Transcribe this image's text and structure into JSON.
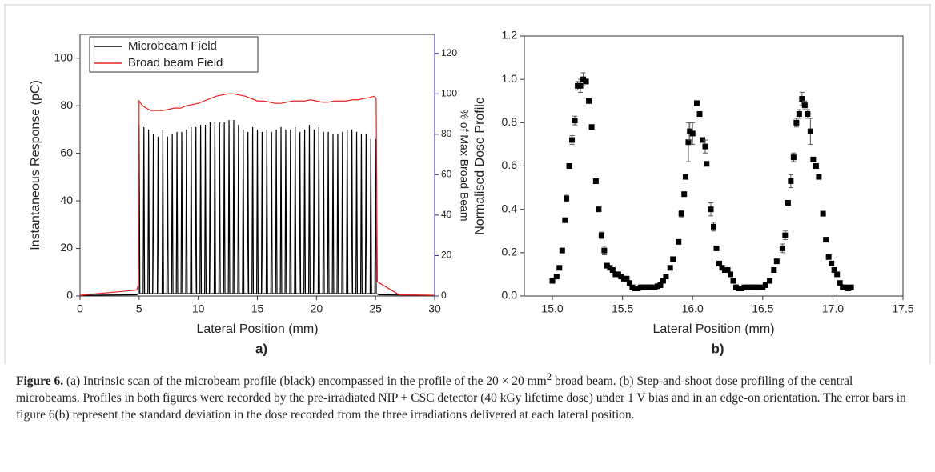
{
  "chart_data": [
    {
      "type": "line",
      "panel_label": "a)",
      "x_label": "Lateral Position (mm)",
      "y_label": "Instantaneous Response (pC)",
      "y2_label": "% of Max Broad Beam",
      "xlim": [
        0,
        30
      ],
      "ylim": [
        0,
        110
      ],
      "y2lim": [
        0,
        129.4
      ],
      "xticks": [
        0,
        5,
        10,
        15,
        20,
        25,
        30
      ],
      "yticks": [
        0,
        20,
        40,
        60,
        80,
        100
      ],
      "y2ticks": [
        0,
        20,
        40,
        60,
        80,
        100,
        120
      ],
      "y2_color": "#2b2bb0",
      "legend": "upper left",
      "series": [
        {
          "name": "Microbeam Field",
          "color": "#000000",
          "x": [
            0,
            4.8,
            4.94,
            5,
            5.06,
            5.34,
            5.4,
            5.46,
            5.74,
            5.8,
            5.86,
            6.14,
            6.2,
            6.26,
            6.54,
            6.6,
            6.66,
            6.94,
            7,
            7.06,
            7.34,
            7.4,
            7.46,
            7.74,
            7.8,
            7.86,
            8.14,
            8.2,
            8.26,
            8.54,
            8.6,
            8.66,
            8.94,
            9,
            9.06,
            9.34,
            9.4,
            9.46,
            9.74,
            9.8,
            9.86,
            10.14,
            10.2,
            10.26,
            10.54,
            10.6,
            10.66,
            10.94,
            11,
            11.06,
            11.34,
            11.4,
            11.46,
            11.74,
            11.8,
            11.86,
            12.14,
            12.2,
            12.26,
            12.54,
            12.6,
            12.66,
            12.94,
            13,
            13.06,
            13.34,
            13.4,
            13.46,
            13.74,
            13.8,
            13.86,
            14.14,
            14.2,
            14.26,
            14.54,
            14.6,
            14.66,
            14.94,
            15,
            15.06,
            15.34,
            15.4,
            15.46,
            15.74,
            15.8,
            15.86,
            16.14,
            16.2,
            16.26,
            16.54,
            16.6,
            16.66,
            16.94,
            17,
            17.06,
            17.34,
            17.4,
            17.46,
            17.74,
            17.8,
            17.86,
            18.14,
            18.2,
            18.26,
            18.54,
            18.6,
            18.66,
            18.94,
            19,
            19.06,
            19.34,
            19.4,
            19.46,
            19.74,
            19.8,
            19.86,
            20.14,
            20.2,
            20.26,
            20.54,
            20.6,
            20.66,
            20.94,
            21,
            21.06,
            21.34,
            21.4,
            21.46,
            21.74,
            21.8,
            21.86,
            22.14,
            22.2,
            22.26,
            22.54,
            22.6,
            22.66,
            22.94,
            23,
            23.06,
            23.34,
            23.4,
            23.46,
            23.74,
            23.8,
            23.86,
            24.14,
            24.2,
            24.26,
            24.54,
            24.6,
            24.66,
            24.94,
            25,
            25.06,
            25.3,
            30
          ],
          "values": [
            0.3,
            0.5,
            1,
            72,
            1,
            1,
            71,
            1,
            1,
            70,
            1,
            1,
            68,
            1,
            1,
            67,
            1,
            1,
            70,
            1,
            1,
            67,
            1,
            1,
            68,
            1,
            1,
            69,
            1,
            1,
            69,
            1,
            1,
            70,
            1,
            1,
            71,
            1,
            1,
            71,
            1,
            1,
            72,
            1,
            1,
            72,
            1,
            1,
            73,
            1,
            1,
            73,
            1,
            1,
            73,
            1,
            1,
            73,
            1,
            1,
            74,
            1,
            1,
            74,
            1,
            1,
            72,
            1,
            1,
            70,
            1,
            1,
            69,
            1,
            1,
            71,
            1,
            1,
            70,
            1,
            1,
            69,
            1,
            1,
            70,
            1,
            1,
            69,
            1,
            1,
            70,
            1,
            1,
            71,
            1,
            1,
            70,
            1,
            1,
            70,
            1,
            1,
            71,
            1,
            1,
            69,
            1,
            1,
            70,
            1,
            1,
            72,
            1,
            1,
            70,
            1,
            1,
            71,
            1,
            1,
            69,
            1,
            1,
            69,
            1,
            1,
            68,
            1,
            1,
            68,
            1,
            1,
            69,
            1,
            1,
            70,
            1,
            1,
            70,
            1,
            1,
            69,
            1,
            1,
            68,
            1,
            1,
            68,
            1,
            1,
            66,
            1,
            1,
            66,
            1,
            0.5,
            0.3
          ]
        },
        {
          "name": "Broad beam Field",
          "color": "#e8211d",
          "x": [
            0,
            2.6,
            4.8,
            4.95,
            5,
            5.3,
            5.6,
            6,
            6.5,
            7,
            7.5,
            8,
            8.5,
            9,
            9.5,
            10,
            10.5,
            11,
            11.5,
            12,
            12.5,
            13,
            13.5,
            14,
            14.5,
            15,
            15.5,
            16,
            16.5,
            17,
            17.5,
            18,
            18.5,
            19,
            19.5,
            20,
            20.5,
            21,
            21.5,
            22,
            22.5,
            23,
            23.5,
            24,
            24.5,
            24.9,
            25.05,
            25.15,
            26.5,
            27,
            30
          ],
          "values": [
            0.3,
            1.5,
            2.5,
            5,
            82,
            80,
            79,
            78,
            78,
            78,
            78.5,
            79,
            79,
            80,
            80.5,
            81,
            82,
            83,
            84,
            84.5,
            85,
            85,
            84.5,
            84,
            83,
            82,
            82,
            81.5,
            81,
            81,
            81.5,
            82,
            82,
            82,
            82.5,
            82,
            81.5,
            81.5,
            82,
            82,
            82,
            82.5,
            82.5,
            83,
            83.5,
            84,
            83,
            6,
            2,
            0.5,
            0.3
          ]
        }
      ]
    },
    {
      "type": "scatter",
      "panel_label": "b)",
      "x_label": "Lateral Position (mm)",
      "y_label": "Normalised Dose Profile",
      "xlim": [
        14.8,
        17.5
      ],
      "ylim": [
        0,
        1.2
      ],
      "xticks": [
        {
          "value": 15,
          "label": "15.0"
        },
        15.5,
        {
          "value": 16,
          "label": "16.0"
        },
        16.5,
        {
          "value": 17,
          "label": "17.0"
        },
        17.5
      ],
      "yticks": [
        {
          "value": 0,
          "label": "0.0"
        },
        0.2,
        0.4,
        0.6,
        0.8,
        {
          "value": 1,
          "label": "1.0"
        },
        1.2
      ],
      "color": "#000000",
      "x": [
        15.0,
        15.03,
        15.05,
        15.07,
        15.09,
        15.1,
        15.12,
        15.14,
        15.16,
        15.18,
        15.2,
        15.22,
        15.24,
        15.26,
        15.28,
        15.31,
        15.33,
        15.35,
        15.37,
        15.39,
        15.41,
        15.43,
        15.45,
        15.47,
        15.49,
        15.51,
        15.53,
        15.55,
        15.57,
        15.59,
        15.61,
        15.63,
        15.65,
        15.67,
        15.69,
        15.71,
        15.73,
        15.75,
        15.77,
        15.79,
        15.81,
        15.84,
        15.86,
        15.9,
        15.92,
        15.94,
        15.95,
        15.97,
        15.98,
        16.0,
        16.03,
        16.05,
        16.07,
        16.09,
        16.1,
        16.13,
        16.15,
        16.17,
        16.19,
        16.21,
        16.23,
        16.25,
        16.27,
        16.29,
        16.31,
        16.33,
        16.35,
        16.37,
        16.39,
        16.41,
        16.43,
        16.45,
        16.47,
        16.5,
        16.52,
        16.55,
        16.58,
        16.6,
        16.64,
        16.66,
        16.68,
        16.7,
        16.72,
        16.74,
        16.76,
        16.78,
        16.8,
        16.82,
        16.84,
        16.86,
        16.88,
        16.9,
        16.93,
        16.95,
        16.97,
        16.99,
        17.01,
        17.03,
        17.05,
        17.07,
        17.09,
        17.11,
        17.13
      ],
      "values": [
        0.07,
        0.09,
        0.13,
        0.21,
        0.35,
        0.45,
        0.6,
        0.72,
        0.81,
        0.97,
        0.97,
        1.0,
        0.99,
        0.9,
        0.78,
        0.53,
        0.4,
        0.28,
        0.21,
        0.14,
        0.13,
        0.12,
        0.1,
        0.1,
        0.09,
        0.08,
        0.08,
        0.06,
        0.04,
        0.035,
        0.035,
        0.04,
        0.04,
        0.04,
        0.04,
        0.04,
        0.04,
        0.045,
        0.05,
        0.07,
        0.09,
        0.13,
        0.17,
        0.25,
        0.38,
        0.47,
        0.55,
        0.71,
        0.76,
        0.75,
        0.89,
        0.84,
        0.72,
        0.69,
        0.61,
        0.4,
        0.32,
        0.22,
        0.15,
        0.13,
        0.12,
        0.12,
        0.1,
        0.07,
        0.04,
        0.035,
        0.035,
        0.04,
        0.04,
        0.04,
        0.04,
        0.04,
        0.04,
        0.04,
        0.05,
        0.07,
        0.12,
        0.16,
        0.22,
        0.28,
        0.43,
        0.53,
        0.64,
        0.8,
        0.84,
        0.91,
        0.88,
        0.84,
        0.76,
        0.63,
        0.6,
        0.55,
        0.38,
        0.26,
        0.18,
        0.15,
        0.12,
        0.1,
        0.06,
        0.04,
        0.04,
        0.035,
        0.04
      ],
      "errors": [
        0.01,
        0.01,
        0.01,
        0.01,
        0.01,
        0.015,
        0.01,
        0.02,
        0.02,
        0.02,
        0.03,
        0.03,
        0.01,
        0.01,
        0.01,
        0.01,
        0.01,
        0.015,
        0.02,
        0.01,
        0.01,
        0.01,
        0.01,
        0.01,
        0.01,
        0.01,
        0.01,
        0.01,
        0.01,
        0.01,
        0.01,
        0.01,
        0.01,
        0.01,
        0.01,
        0.01,
        0.01,
        0.01,
        0.01,
        0.01,
        0.01,
        0.01,
        0.01,
        0.01,
        0.015,
        0.01,
        0.01,
        0.09,
        0.04,
        0.05,
        0.01,
        0.01,
        0.01,
        0.03,
        0.01,
        0.03,
        0.02,
        0.01,
        0.01,
        0.01,
        0.01,
        0.01,
        0.01,
        0.01,
        0.01,
        0.01,
        0.01,
        0.01,
        0.01,
        0.01,
        0.01,
        0.01,
        0.01,
        0.01,
        0.01,
        0.01,
        0.01,
        0.01,
        0.02,
        0.02,
        0.01,
        0.03,
        0.02,
        0.02,
        0.02,
        0.03,
        0.02,
        0.02,
        0.06,
        0.01,
        0.01,
        0.01,
        0.01,
        0.01,
        0.01,
        0.01,
        0.01,
        0.01,
        0.01,
        0.01,
        0.01,
        0.01,
        0.01
      ]
    }
  ],
  "caption": {
    "label": "Figure 6.",
    "text_before": " (a) Intrinsic scan of the microbeam profile (black) encompassed in the profile of the 20 × 20 mm",
    "superscript": "2",
    "text_after": " broad beam. (b) Step-and-shoot dose profiling of the central microbeams. Profiles in both figures were recorded by the pre-irradiated NIP + CSC detector (40 kGy lifetime dose) under 1 V bias and in an edge-on orientation. The error bars in figure 6(b) represent the standard deviation in the dose recorded from the three irradiations delivered at each lateral position."
  }
}
